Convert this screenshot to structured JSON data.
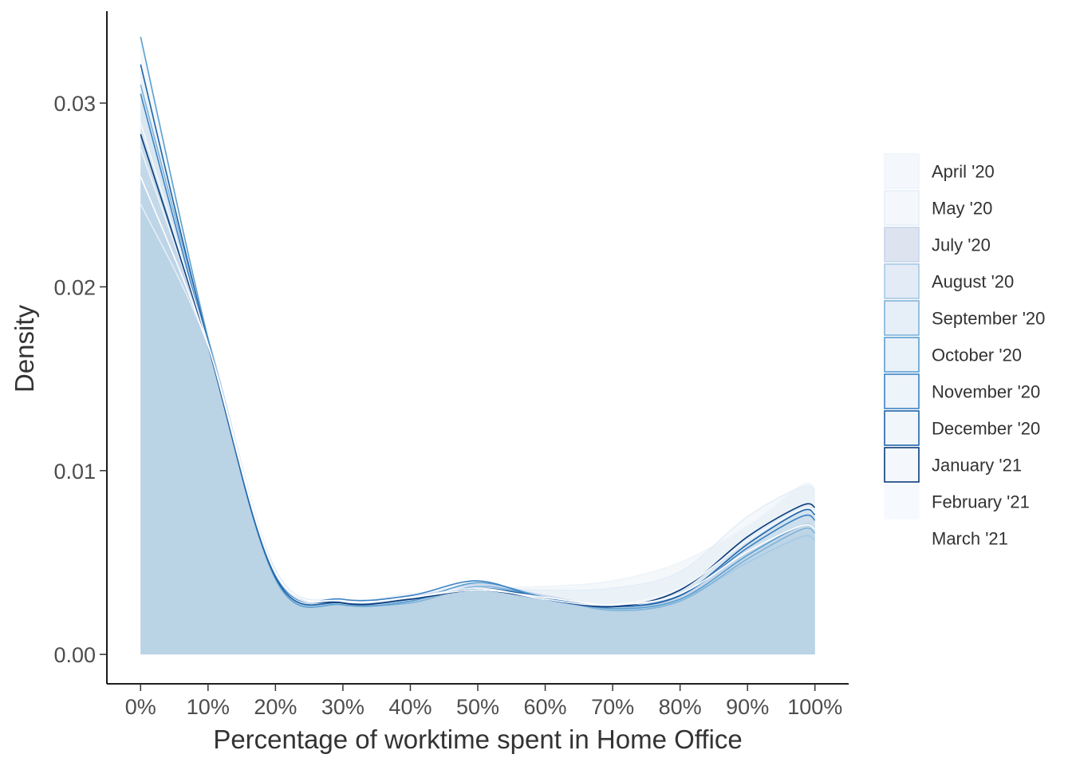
{
  "chart_data": {
    "type": "area",
    "title": "",
    "xlabel": "Percentage of worktime spent in Home Office",
    "ylabel": "Density",
    "xlim": [
      -5,
      105
    ],
    "ylim": [
      -0.0016,
      0.035
    ],
    "x_ticks": [
      0,
      10,
      20,
      30,
      40,
      50,
      60,
      70,
      80,
      90,
      100
    ],
    "x_tick_labels": [
      "0%",
      "10%",
      "20%",
      "30%",
      "40%",
      "50%",
      "60%",
      "70%",
      "80%",
      "90%",
      "100%"
    ],
    "y_ticks": [
      0,
      0.01,
      0.02,
      0.03
    ],
    "y_tick_labels": [
      "0.00",
      "0.01",
      "0.02",
      "0.03"
    ],
    "grid": false,
    "legend_position": "right",
    "x": [
      0,
      10,
      20,
      30,
      40,
      50,
      60,
      70,
      80,
      90,
      98,
      100
    ],
    "series": [
      {
        "name": "April '20",
        "fill": "#f4f8fc",
        "stroke": "#eef4fa",
        "values": [
          0.0275,
          0.017,
          0.0046,
          0.003,
          0.0033,
          0.0036,
          0.0037,
          0.004,
          0.005,
          0.007,
          0.0092,
          0.009
        ]
      },
      {
        "name": "May '20",
        "fill": "#f4f8fc",
        "stroke": "#e4eef8",
        "values": [
          0.0245,
          0.0168,
          0.0046,
          0.0029,
          0.0032,
          0.0036,
          0.0035,
          0.0036,
          0.0045,
          0.0075,
          0.0091,
          0.0089
        ]
      },
      {
        "name": "July '20",
        "fill": "#dde3ef",
        "stroke": "#c9d6ea",
        "values": [
          0.0262,
          0.017,
          0.0044,
          0.0029,
          0.0031,
          0.0038,
          0.0032,
          0.0026,
          0.0031,
          0.0055,
          0.0068,
          0.0066
        ]
      },
      {
        "name": "August '20",
        "fill": "#e3ebf6",
        "stroke": "#a6c9e6",
        "values": [
          0.0282,
          0.0172,
          0.0042,
          0.0028,
          0.0029,
          0.0036,
          0.0031,
          0.0025,
          0.003,
          0.005,
          0.0064,
          0.0062
        ]
      },
      {
        "name": "September '20",
        "fill": "#e6eef8",
        "stroke": "#7fb3da",
        "values": [
          0.031,
          0.0171,
          0.0042,
          0.0028,
          0.0028,
          0.0037,
          0.0031,
          0.0024,
          0.0029,
          0.0052,
          0.0068,
          0.0066
        ]
      },
      {
        "name": "October '20",
        "fill": "#e9f1f9",
        "stroke": "#5a9fd0",
        "values": [
          0.0336,
          0.0172,
          0.0041,
          0.0027,
          0.0029,
          0.0039,
          0.0031,
          0.0025,
          0.003,
          0.0054,
          0.007,
          0.0068
        ]
      },
      {
        "name": "November '20",
        "fill": "#edf4fa",
        "stroke": "#3b82c4",
        "values": [
          0.0305,
          0.0168,
          0.0043,
          0.003,
          0.0032,
          0.004,
          0.003,
          0.0026,
          0.0032,
          0.0058,
          0.0075,
          0.0073
        ]
      },
      {
        "name": "December '20",
        "fill": "#f1f6fb",
        "stroke": "#1f63a8",
        "values": [
          0.0321,
          0.017,
          0.0042,
          0.0028,
          0.003,
          0.0036,
          0.0031,
          0.0026,
          0.0032,
          0.006,
          0.0078,
          0.0076
        ]
      },
      {
        "name": "January '21",
        "fill": "#f4f8fc",
        "stroke": "#0d3b7a",
        "values": [
          0.0283,
          0.0168,
          0.0045,
          0.0028,
          0.003,
          0.0035,
          0.003,
          0.0026,
          0.0035,
          0.0064,
          0.0081,
          0.008
        ]
      },
      {
        "name": "February '21",
        "fill": "#f6f9fd",
        "stroke": "#f6f9fd",
        "values": [
          0.0289,
          0.0169,
          0.0044,
          0.0029,
          0.0031,
          0.0036,
          0.003,
          0.0027,
          0.0036,
          0.0062,
          0.0079,
          0.0077
        ]
      },
      {
        "name": "March '21",
        "fill": "#ffffff",
        "stroke": "#ffffff",
        "values": [
          0.026,
          0.0168,
          0.0045,
          0.0029,
          0.0031,
          0.0035,
          0.0031,
          0.0027,
          0.0033,
          0.0056,
          0.007,
          0.0068
        ]
      }
    ]
  }
}
